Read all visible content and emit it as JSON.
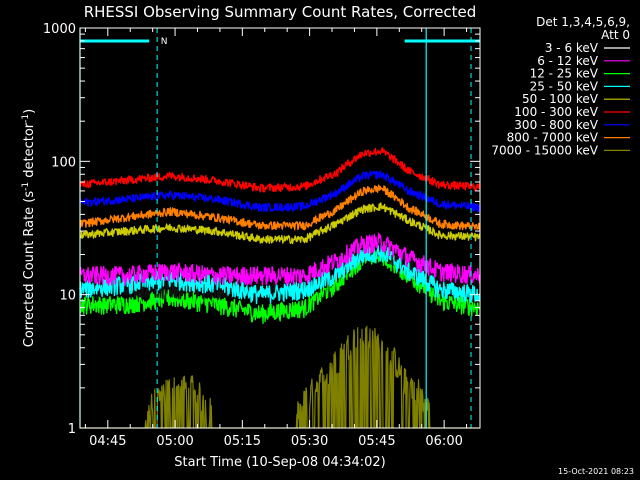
{
  "chart_data": {
    "type": "line",
    "title": "RHESSI Observing Summary Count Rates, Corrected",
    "xlabel": "Start Time (10-Sep-08 04:34:02)",
    "ylabel_main": "Corrected Count Rate (s",
    "ylabel_sup1": "-1",
    "ylabel_mid": " detector",
    "ylabel_sup2": "-1",
    "ylabel_end": ")",
    "yscale": "log",
    "ylim": [
      1,
      1000
    ],
    "xlim_minutes": [
      4.8,
      94.0
    ],
    "x_tick_labels": [
      "04:45",
      "05:00",
      "05:15",
      "05:30",
      "05:45",
      "06:00"
    ],
    "x_tick_minutes": [
      11,
      26,
      41,
      56,
      71,
      86
    ],
    "y_tick_labels": [
      "1",
      "10",
      "100",
      "1000"
    ],
    "y_tick_values": [
      1,
      10,
      100,
      1000
    ],
    "legend_header": "Det 1,3,4,5,6,9,",
    "legend_header2": "Att 0",
    "footer_date": "15-Oct-2021 08:23",
    "night_marker": "N",
    "night_bar_minutes": [
      4.8,
      22.0
    ],
    "day_bar_minutes": [
      77.2,
      94.0
    ],
    "dashed_line_minutes": [
      22.0,
      92.0
    ],
    "solid_line_minutes": [
      4.8,
      82.0
    ],
    "series": [
      {
        "name": "3 - 6 keV",
        "color": "#000000",
        "x": [
          5,
          15,
          25,
          35,
          45,
          55,
          62,
          68,
          72,
          78,
          85,
          94
        ],
        "y": [
          11,
          11,
          11,
          11,
          11,
          11,
          14,
          20,
          21,
          16,
          12,
          12
        ]
      },
      {
        "name": "6 - 12 keV",
        "color": "#ff00ff",
        "x": [
          5,
          15,
          25,
          35,
          45,
          55,
          62,
          68,
          72,
          78,
          85,
          94
        ],
        "y": [
          14,
          14,
          15,
          14,
          14,
          14,
          18,
          24,
          25,
          19,
          15,
          14
        ]
      },
      {
        "name": "12 - 25 keV",
        "color": "#00ff00",
        "x": [
          5,
          15,
          25,
          35,
          45,
          55,
          62,
          68,
          72,
          78,
          85,
          94
        ],
        "y": [
          8.5,
          8.5,
          9.5,
          8.5,
          7.2,
          8,
          12,
          19,
          20,
          14,
          9,
          8
        ]
      },
      {
        "name": "25 - 50 keV",
        "color": "#00ffff",
        "x": [
          5,
          15,
          25,
          35,
          45,
          55,
          62,
          68,
          72,
          78,
          85,
          94
        ],
        "y": [
          11,
          12,
          13,
          12,
          10,
          11,
          14,
          20,
          21,
          15,
          11,
          10
        ]
      },
      {
        "name": "50 - 100 keV",
        "color": "#cccc00",
        "x": [
          5,
          15,
          25,
          35,
          45,
          55,
          62,
          68,
          72,
          78,
          85,
          94
        ],
        "y": [
          28,
          30,
          32,
          30,
          26,
          26,
          34,
          44,
          46,
          36,
          28,
          27
        ]
      },
      {
        "name": "100 - 300 keV",
        "color": "#ff0000",
        "x": [
          5,
          15,
          25,
          35,
          45,
          55,
          62,
          68,
          72,
          78,
          85,
          94
        ],
        "y": [
          67,
          72,
          78,
          72,
          63,
          65,
          82,
          115,
          120,
          85,
          67,
          64
        ]
      },
      {
        "name": "300 - 800 keV",
        "color": "#0000ff",
        "x": [
          5,
          15,
          25,
          35,
          45,
          55,
          62,
          68,
          72,
          78,
          85,
          94
        ],
        "y": [
          49,
          52,
          56,
          52,
          45,
          46,
          58,
          78,
          80,
          60,
          48,
          45
        ]
      },
      {
        "name": "800 - 7000 keV",
        "color": "#ff8000",
        "x": [
          5,
          15,
          25,
          35,
          45,
          55,
          62,
          68,
          72,
          78,
          85,
          94
        ],
        "y": [
          34,
          38,
          42,
          38,
          33,
          33,
          43,
          60,
          63,
          45,
          34,
          32
        ]
      },
      {
        "name": "7000 - 15000 keV",
        "color": "#808000",
        "x": [
          5,
          18,
          24,
          30,
          36,
          52,
          57,
          62,
          66,
          70,
          74,
          77,
          80,
          84,
          88,
          94
        ],
        "y": [
          1,
          1,
          1.9,
          1.9,
          1,
          1,
          1.9,
          3,
          4.5,
          4.5,
          3.5,
          2.2,
          1.9,
          1,
          1,
          1
        ]
      }
    ]
  }
}
